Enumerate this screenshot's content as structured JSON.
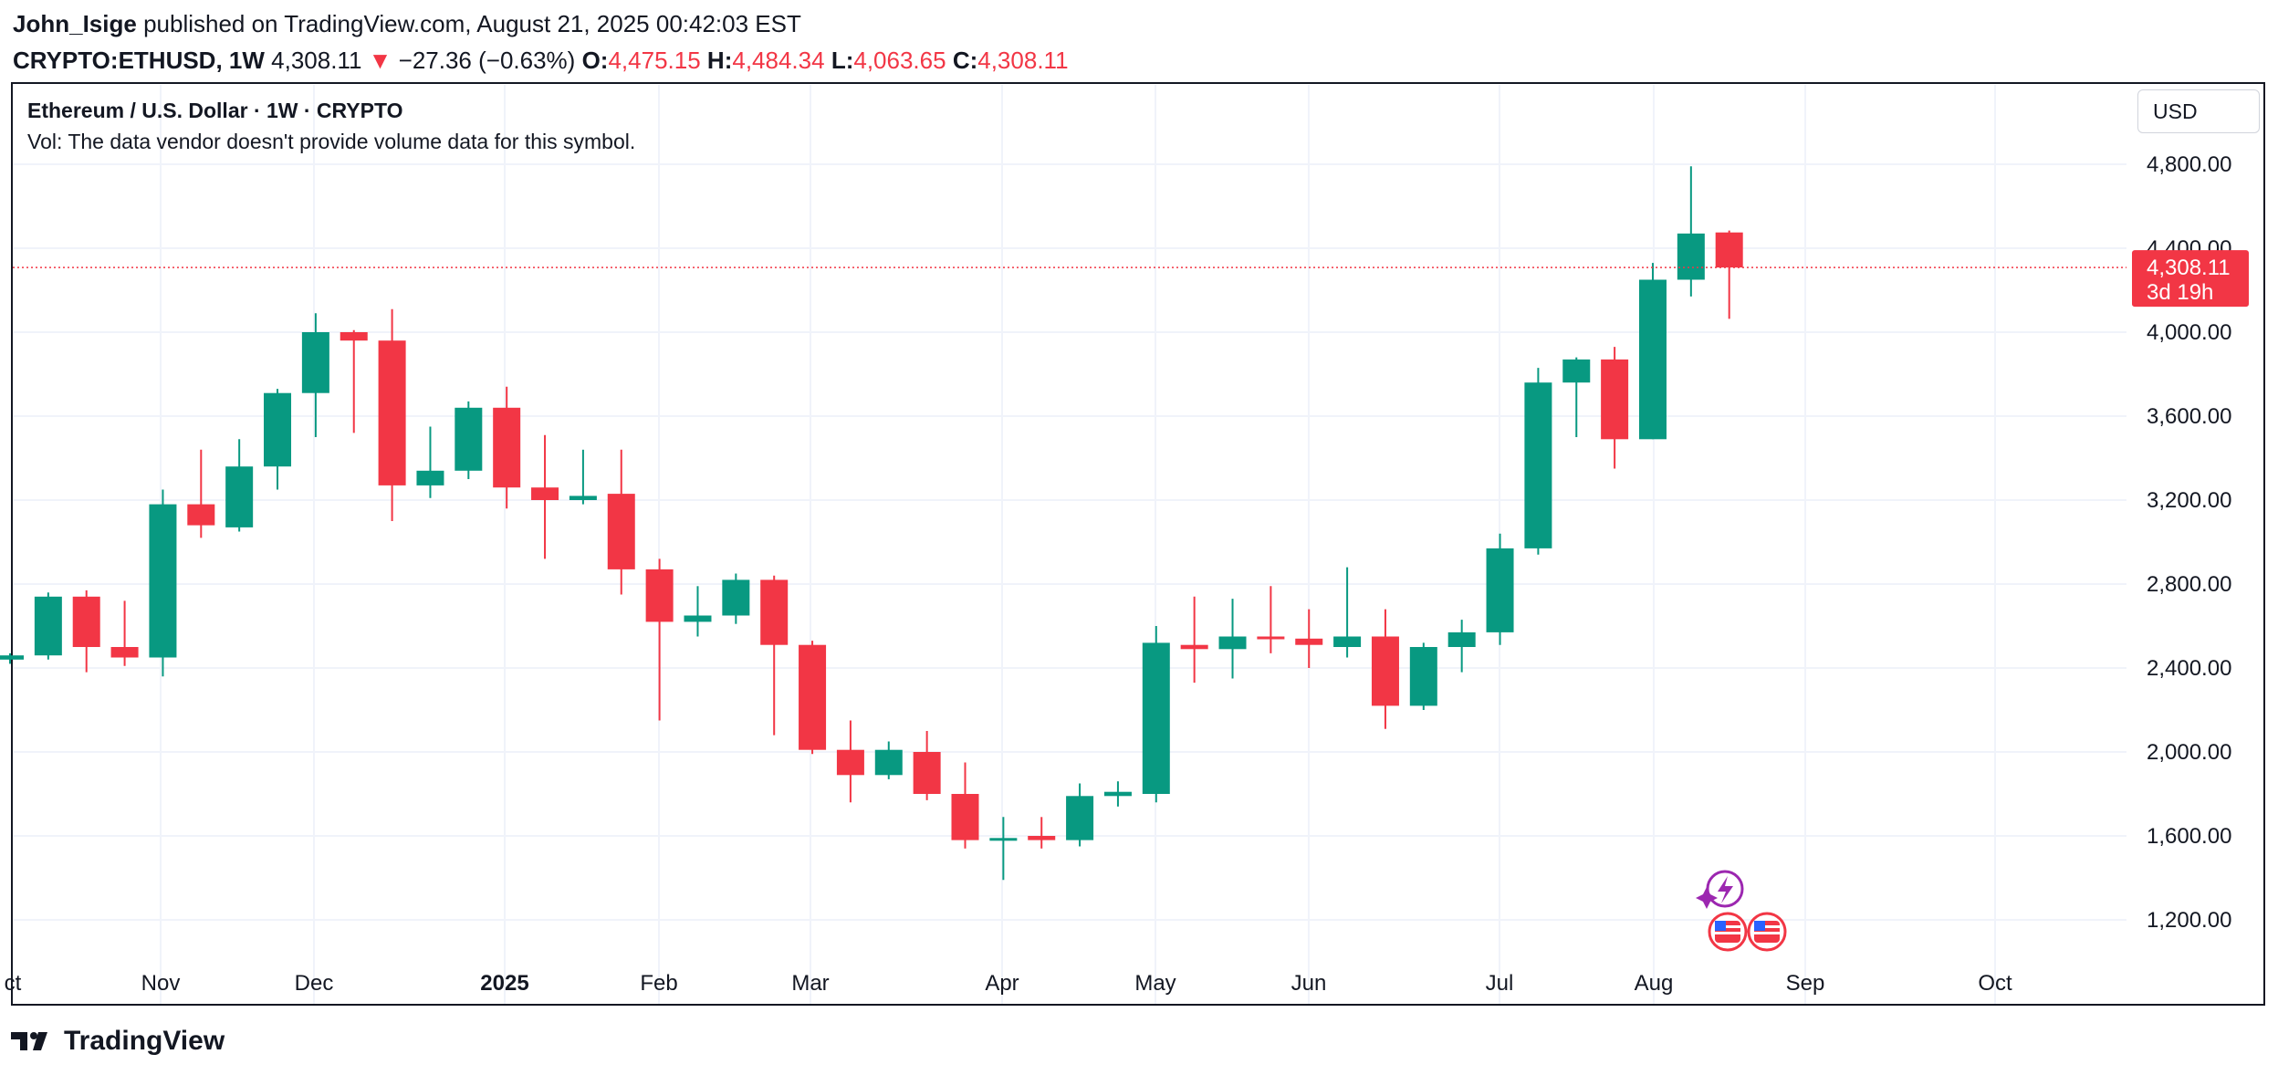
{
  "header": {
    "author": "John_Isige",
    "published_text": "published on TradingView.com, August 21, 2025 00:42:03 EST",
    "symbol": "CRYPTO:ETHUSD, 1W",
    "last": "4,308.11",
    "change_arrow": "▼",
    "change": "−27.36 (−0.63%)",
    "o_label": "O:",
    "o_value": "4,475.15",
    "h_label": "H:",
    "h_value": "4,484.34",
    "l_label": "L:",
    "l_value": "4,063.65",
    "c_label": "C:",
    "c_value": "4,308.11"
  },
  "legend": {
    "title": "Ethereum / U.S. Dollar · 1W · CRYPTO",
    "volume_note": "Vol: The data vendor doesn't provide volume data for this symbol."
  },
  "currency_button": "USD",
  "price_label": {
    "value": "4,308.11",
    "countdown": "3d 19h"
  },
  "footer": {
    "brand": "TradingView",
    "logo_icon": "tradingview-logo-icon"
  },
  "colors": {
    "up": "#089981",
    "down": "#f23645",
    "grid": "#f0f3fa",
    "text": "#131722"
  },
  "chart_data": {
    "type": "candlestick",
    "title": "Ethereum / U.S. Dollar · 1W · CRYPTO",
    "y_ticks": [
      1200,
      1600,
      2000,
      2400,
      2800,
      3200,
      3600,
      4000,
      4400,
      4800
    ],
    "y_tick_labels": [
      "1,200.00",
      "1,600.00",
      "2,000.00",
      "2,400.00",
      "2,800.00",
      "3,200.00",
      "3,600.00",
      "4,000.00",
      "4,400.00",
      "4,800.00"
    ],
    "ylim": [
      1000,
      5030
    ],
    "x_labels": [
      "ct",
      "Nov",
      "Dec",
      "2025",
      "Feb",
      "Mar",
      "Apr",
      "May",
      "Jun",
      "Jul",
      "Aug",
      "Sep",
      "Oct"
    ],
    "last_price": 4308.11,
    "candles": [
      {
        "o": 2440,
        "h": 2470,
        "l": 2420,
        "c": 2460
      },
      {
        "o": 2460,
        "h": 2760,
        "l": 2440,
        "c": 2740
      },
      {
        "o": 2740,
        "h": 2770,
        "l": 2380,
        "c": 2500
      },
      {
        "o": 2500,
        "h": 2720,
        "l": 2410,
        "c": 2450
      },
      {
        "o": 2450,
        "h": 3250,
        "l": 2360,
        "c": 3180
      },
      {
        "o": 3180,
        "h": 3440,
        "l": 3020,
        "c": 3080
      },
      {
        "o": 3070,
        "h": 3490,
        "l": 3050,
        "c": 3360
      },
      {
        "o": 3360,
        "h": 3730,
        "l": 3250,
        "c": 3710
      },
      {
        "o": 3710,
        "h": 4090,
        "l": 3500,
        "c": 4000
      },
      {
        "o": 4000,
        "h": 4010,
        "l": 3520,
        "c": 3960
      },
      {
        "o": 3960,
        "h": 4110,
        "l": 3100,
        "c": 3270
      },
      {
        "o": 3270,
        "h": 3550,
        "l": 3210,
        "c": 3340
      },
      {
        "o": 3340,
        "h": 3670,
        "l": 3300,
        "c": 3640
      },
      {
        "o": 3640,
        "h": 3740,
        "l": 3160,
        "c": 3260
      },
      {
        "o": 3260,
        "h": 3510,
        "l": 2920,
        "c": 3200
      },
      {
        "o": 3200,
        "h": 3440,
        "l": 3180,
        "c": 3220
      },
      {
        "o": 3230,
        "h": 3440,
        "l": 2750,
        "c": 2870
      },
      {
        "o": 2870,
        "h": 2920,
        "l": 2150,
        "c": 2620
      },
      {
        "o": 2620,
        "h": 2790,
        "l": 2550,
        "c": 2650
      },
      {
        "o": 2650,
        "h": 2850,
        "l": 2610,
        "c": 2820
      },
      {
        "o": 2820,
        "h": 2840,
        "l": 2080,
        "c": 2510
      },
      {
        "o": 2510,
        "h": 2530,
        "l": 1990,
        "c": 2010
      },
      {
        "o": 2010,
        "h": 2150,
        "l": 1760,
        "c": 1890
      },
      {
        "o": 1890,
        "h": 2050,
        "l": 1870,
        "c": 2010
      },
      {
        "o": 2000,
        "h": 2100,
        "l": 1770,
        "c": 1800
      },
      {
        "o": 1800,
        "h": 1950,
        "l": 1540,
        "c": 1580
      },
      {
        "o": 1580,
        "h": 1690,
        "l": 1390,
        "c": 1590
      },
      {
        "o": 1600,
        "h": 1690,
        "l": 1540,
        "c": 1580
      },
      {
        "o": 1580,
        "h": 1850,
        "l": 1550,
        "c": 1790
      },
      {
        "o": 1790,
        "h": 1860,
        "l": 1740,
        "c": 1810
      },
      {
        "o": 1800,
        "h": 2600,
        "l": 1760,
        "c": 2520
      },
      {
        "o": 2510,
        "h": 2740,
        "l": 2330,
        "c": 2490
      },
      {
        "o": 2490,
        "h": 2730,
        "l": 2350,
        "c": 2550
      },
      {
        "o": 2550,
        "h": 2790,
        "l": 2470,
        "c": 2540
      },
      {
        "o": 2540,
        "h": 2680,
        "l": 2400,
        "c": 2510
      },
      {
        "o": 2500,
        "h": 2880,
        "l": 2450,
        "c": 2550
      },
      {
        "o": 2550,
        "h": 2680,
        "l": 2110,
        "c": 2220
      },
      {
        "o": 2220,
        "h": 2520,
        "l": 2200,
        "c": 2500
      },
      {
        "o": 2500,
        "h": 2630,
        "l": 2380,
        "c": 2570
      },
      {
        "o": 2570,
        "h": 3040,
        "l": 2510,
        "c": 2970
      },
      {
        "o": 2970,
        "h": 3830,
        "l": 2940,
        "c": 3760
      },
      {
        "o": 3760,
        "h": 3880,
        "l": 3500,
        "c": 3870
      },
      {
        "o": 3870,
        "h": 3930,
        "l": 3350,
        "c": 3490
      },
      {
        "o": 3490,
        "h": 4330,
        "l": 3490,
        "c": 4250
      },
      {
        "o": 4250,
        "h": 4790,
        "l": 4170,
        "c": 4470
      },
      {
        "o": 4475.15,
        "h": 4484.34,
        "l": 4063.65,
        "c": 4308.11
      }
    ]
  }
}
